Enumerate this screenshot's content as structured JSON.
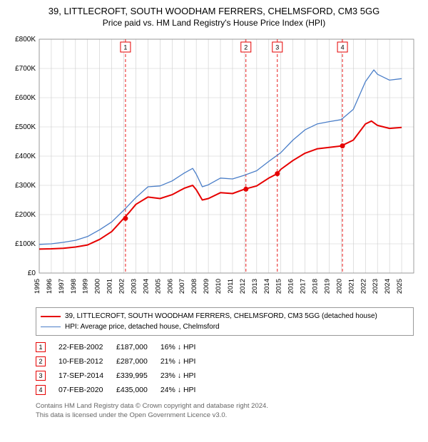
{
  "header": {
    "title": "39, LITTLECROFT, SOUTH WOODHAM FERRERS, CHELMSFORD, CM3 5GG",
    "subtitle": "Price paid vs. HM Land Registry's House Price Index (HPI)"
  },
  "chart": {
    "type": "line",
    "background_color": "#ffffff",
    "grid_color": "#cccccc",
    "border_color": "#888888",
    "x_start": 1995,
    "x_end": 2026,
    "x_ticks": [
      1995,
      1996,
      1997,
      1998,
      1999,
      2000,
      2001,
      2002,
      2003,
      2004,
      2005,
      2006,
      2007,
      2008,
      2009,
      2010,
      2011,
      2012,
      2013,
      2014,
      2015,
      2016,
      2017,
      2018,
      2019,
      2020,
      2021,
      2022,
      2023,
      2024,
      2025
    ],
    "y_min": 0,
    "y_max": 800000,
    "y_tick_step": 100000,
    "y_tick_prefix": "£",
    "y_tick_suffix": "K",
    "series": [
      {
        "name": "39, LITTLECROFT, SOUTH WOODHAM FERRERS, CHELMSFORD, CM3 5GG (detached house)",
        "color": "#e60000",
        "width": 2,
        "data": [
          [
            1995,
            82000
          ],
          [
            1996,
            83000
          ],
          [
            1997,
            85000
          ],
          [
            1998,
            89000
          ],
          [
            1999,
            96000
          ],
          [
            2000,
            115000
          ],
          [
            2001,
            142000
          ],
          [
            2002,
            187000
          ],
          [
            2002.5,
            210000
          ],
          [
            2003,
            235000
          ],
          [
            2004,
            260000
          ],
          [
            2005,
            255000
          ],
          [
            2006,
            268000
          ],
          [
            2007,
            290000
          ],
          [
            2007.7,
            300000
          ],
          [
            2008,
            285000
          ],
          [
            2008.5,
            250000
          ],
          [
            2009,
            255000
          ],
          [
            2010,
            275000
          ],
          [
            2011,
            272000
          ],
          [
            2012,
            287000
          ],
          [
            2013,
            298000
          ],
          [
            2014,
            325000
          ],
          [
            2014.7,
            339995
          ],
          [
            2015,
            355000
          ],
          [
            2016,
            385000
          ],
          [
            2017,
            410000
          ],
          [
            2018,
            425000
          ],
          [
            2019,
            430000
          ],
          [
            2020,
            435000
          ],
          [
            2021,
            455000
          ],
          [
            2022,
            510000
          ],
          [
            2022.5,
            520000
          ],
          [
            2023,
            505000
          ],
          [
            2024,
            495000
          ],
          [
            2025,
            498000
          ]
        ]
      },
      {
        "name": "HPI: Average price, detached house, Chelmsford",
        "color": "#4a7ec8",
        "width": 1.3,
        "data": [
          [
            1995,
            98000
          ],
          [
            1996,
            100000
          ],
          [
            1997,
            105000
          ],
          [
            1998,
            112000
          ],
          [
            1999,
            125000
          ],
          [
            2000,
            148000
          ],
          [
            2001,
            175000
          ],
          [
            2002,
            215000
          ],
          [
            2003,
            258000
          ],
          [
            2004,
            295000
          ],
          [
            2005,
            298000
          ],
          [
            2006,
            315000
          ],
          [
            2007,
            342000
          ],
          [
            2007.7,
            358000
          ],
          [
            2008,
            338000
          ],
          [
            2008.5,
            295000
          ],
          [
            2009,
            302000
          ],
          [
            2010,
            325000
          ],
          [
            2011,
            322000
          ],
          [
            2012,
            335000
          ],
          [
            2013,
            350000
          ],
          [
            2014,
            382000
          ],
          [
            2015,
            412000
          ],
          [
            2016,
            455000
          ],
          [
            2017,
            490000
          ],
          [
            2018,
            510000
          ],
          [
            2019,
            518000
          ],
          [
            2020,
            525000
          ],
          [
            2021,
            560000
          ],
          [
            2022,
            655000
          ],
          [
            2022.7,
            695000
          ],
          [
            2023,
            680000
          ],
          [
            2024,
            660000
          ],
          [
            2025,
            665000
          ]
        ]
      }
    ],
    "sale_markers": {
      "color": "#e60000",
      "box_border": "#e60000",
      "line_dash": "4,3",
      "points": [
        {
          "n": "1",
          "x": 2002.14,
          "y": 187000
        },
        {
          "n": "2",
          "x": 2012.11,
          "y": 287000
        },
        {
          "n": "3",
          "x": 2014.71,
          "y": 339995
        },
        {
          "n": "4",
          "x": 2020.1,
          "y": 435000
        }
      ]
    }
  },
  "legend": {
    "items": [
      {
        "label": "39, LITTLECROFT, SOUTH WOODHAM FERRERS, CHELMSFORD, CM3 5GG (detached house)",
        "color": "#e60000",
        "width": 2
      },
      {
        "label": "HPI: Average price, detached house, Chelmsford",
        "color": "#4a7ec8",
        "width": 1.3
      }
    ]
  },
  "sales": {
    "marker_border": "#e60000",
    "rows": [
      {
        "n": "1",
        "date": "22-FEB-2002",
        "price": "£187,000",
        "diff": "16% ↓ HPI"
      },
      {
        "n": "2",
        "date": "10-FEB-2012",
        "price": "£287,000",
        "diff": "21% ↓ HPI"
      },
      {
        "n": "3",
        "date": "17-SEP-2014",
        "price": "£339,995",
        "diff": "23% ↓ HPI"
      },
      {
        "n": "4",
        "date": "07-FEB-2020",
        "price": "£435,000",
        "diff": "24% ↓ HPI"
      }
    ]
  },
  "footer": {
    "line1": "Contains HM Land Registry data © Crown copyright and database right 2024.",
    "line2": "This data is licensed under the Open Government Licence v3.0."
  }
}
